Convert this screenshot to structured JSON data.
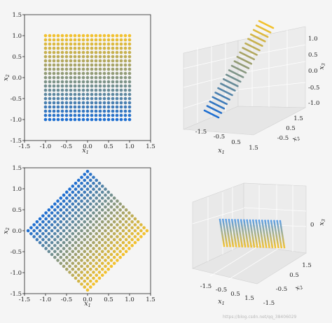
{
  "watermark": "https://blog.csdn.net/qq_38406029",
  "chart_data": [
    {
      "type": "scatter",
      "panel": "top-left",
      "grid_points": 21,
      "x_range": [
        -1,
        1
      ],
      "y_range": [
        -1,
        1
      ],
      "rotation_deg": 0,
      "color_low": "#1f6fd1",
      "color_high": "#f2c12e",
      "xlim": [
        -1.5,
        1.5
      ],
      "ylim": [
        -1.5,
        1.5
      ],
      "xticks": [
        "-1.5",
        "-1.0",
        "-0.5",
        "0.0",
        "0.5",
        "1.0",
        "1.5"
      ],
      "yticks": [
        "-1.5",
        "-1.0",
        "-0.5",
        "0.0",
        "0.5",
        "1.0",
        "1.5"
      ],
      "xlabel": "x",
      "xlabel_sub": "1",
      "ylabel": "x",
      "ylabel_sub": "2"
    },
    {
      "type": "scatter3d",
      "panel": "top-right",
      "xticks": [
        "-1.5",
        "-0.5",
        "0.5",
        "1.5"
      ],
      "yticks": [
        "-0.5",
        "0.5",
        "1.5"
      ],
      "zticks": [
        "-1.0",
        "-0.5",
        "0.0",
        "0.5",
        "1.0"
      ],
      "xlabel": "x",
      "xlabel_sub": "1",
      "ylabel": "x",
      "ylabel_sub": "2",
      "zlabel": "x",
      "zlabel_sub": "3"
    },
    {
      "type": "scatter",
      "panel": "bottom-left",
      "grid_points": 21,
      "x_range": [
        -1,
        1
      ],
      "y_range": [
        -1,
        1
      ],
      "rotation_deg": 45,
      "color_low": "#f2c12e",
      "color_high": "#1f6fd1",
      "xlim": [
        -1.5,
        1.5
      ],
      "ylim": [
        -1.5,
        1.5
      ],
      "xticks": [
        "-1.5",
        "-1.0",
        "-0.5",
        "0.0",
        "0.5",
        "1.0",
        "1.5"
      ],
      "yticks": [
        "-1.5",
        "-1.0",
        "-0.5",
        "0.0",
        "0.5",
        "1.0",
        "1.5"
      ],
      "xlabel": "x",
      "xlabel_sub": "1",
      "ylabel": "x",
      "ylabel_sub": "2"
    },
    {
      "type": "scatter3d",
      "panel": "bottom-right",
      "xticks": [
        "-1.5",
        "-0.5",
        "0.5",
        "1.5"
      ],
      "yticks": [
        "-1.5",
        "-0.5",
        "0.5",
        "1.5"
      ],
      "zticks": [
        "0"
      ],
      "xlabel": "x",
      "xlabel_sub": "1",
      "ylabel": "x",
      "ylabel_sub": "2",
      "zlabel": "x",
      "zlabel_sub": "3"
    }
  ]
}
